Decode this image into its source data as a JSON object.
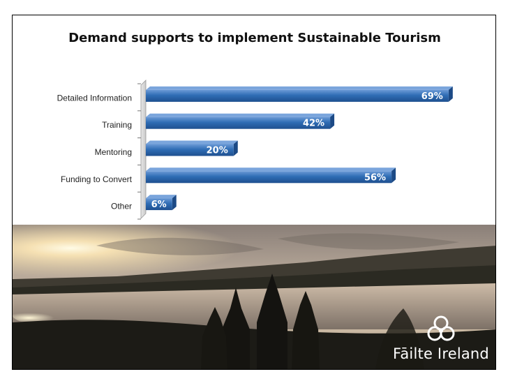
{
  "chart_data": {
    "type": "bar",
    "orientation": "horizontal",
    "title": "Demand supports to implement Sustainable Tourism",
    "categories": [
      "Detailed Information",
      "Training",
      "Mentoring",
      "Funding to Convert",
      "Other"
    ],
    "values": [
      69,
      42,
      20,
      56,
      6
    ],
    "data_labels": [
      "69%",
      "42%",
      "20%",
      "56%",
      "6%"
    ],
    "xlabel": "",
    "ylabel": "",
    "xlim": [
      0,
      80
    ],
    "grid": false,
    "legend": "none",
    "bar_color": "#2f6db5"
  },
  "logo": {
    "text": "Fāilte Ireland",
    "icon": "trefoil-icon"
  },
  "colors": {
    "frame_border": "#000000",
    "bar_fill": "#2f6db5",
    "bar_top": "#5a8fd0",
    "label_text": "#ffffff"
  }
}
